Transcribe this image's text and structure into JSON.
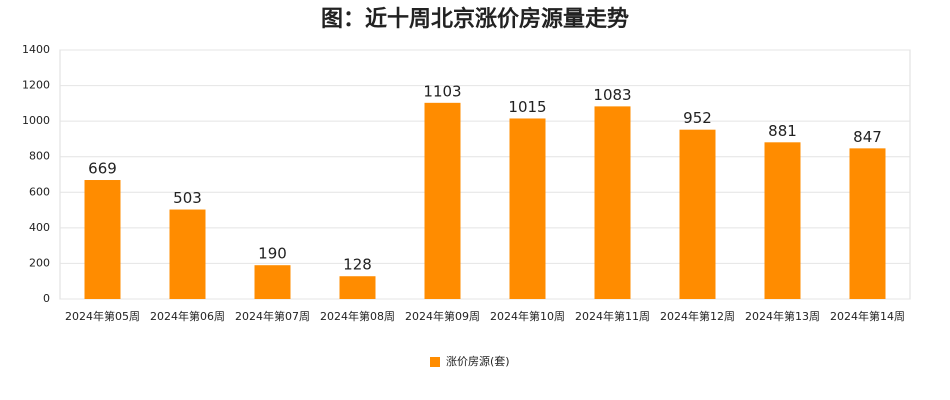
{
  "chart_data": {
    "type": "bar",
    "title": "图：近十周北京涨价房源量走势",
    "categories": [
      "2024年第05周",
      "2024年第06周",
      "2024年第07周",
      "2024年第08周",
      "2024年第09周",
      "2024年第10周",
      "2024年第11周",
      "2024年第12周",
      "2024年第13周",
      "2024年第14周"
    ],
    "series": [
      {
        "name": "涨价房源(套)",
        "color": "#ff8c00",
        "values": [
          669,
          503,
          190,
          128,
          1103,
          1015,
          1083,
          952,
          881,
          847
        ]
      }
    ],
    "ylim": [
      0,
      1400
    ],
    "yticks": [
      0,
      200,
      400,
      600,
      800,
      1000,
      1200,
      1400
    ],
    "grid": true,
    "legend": "bottom"
  }
}
